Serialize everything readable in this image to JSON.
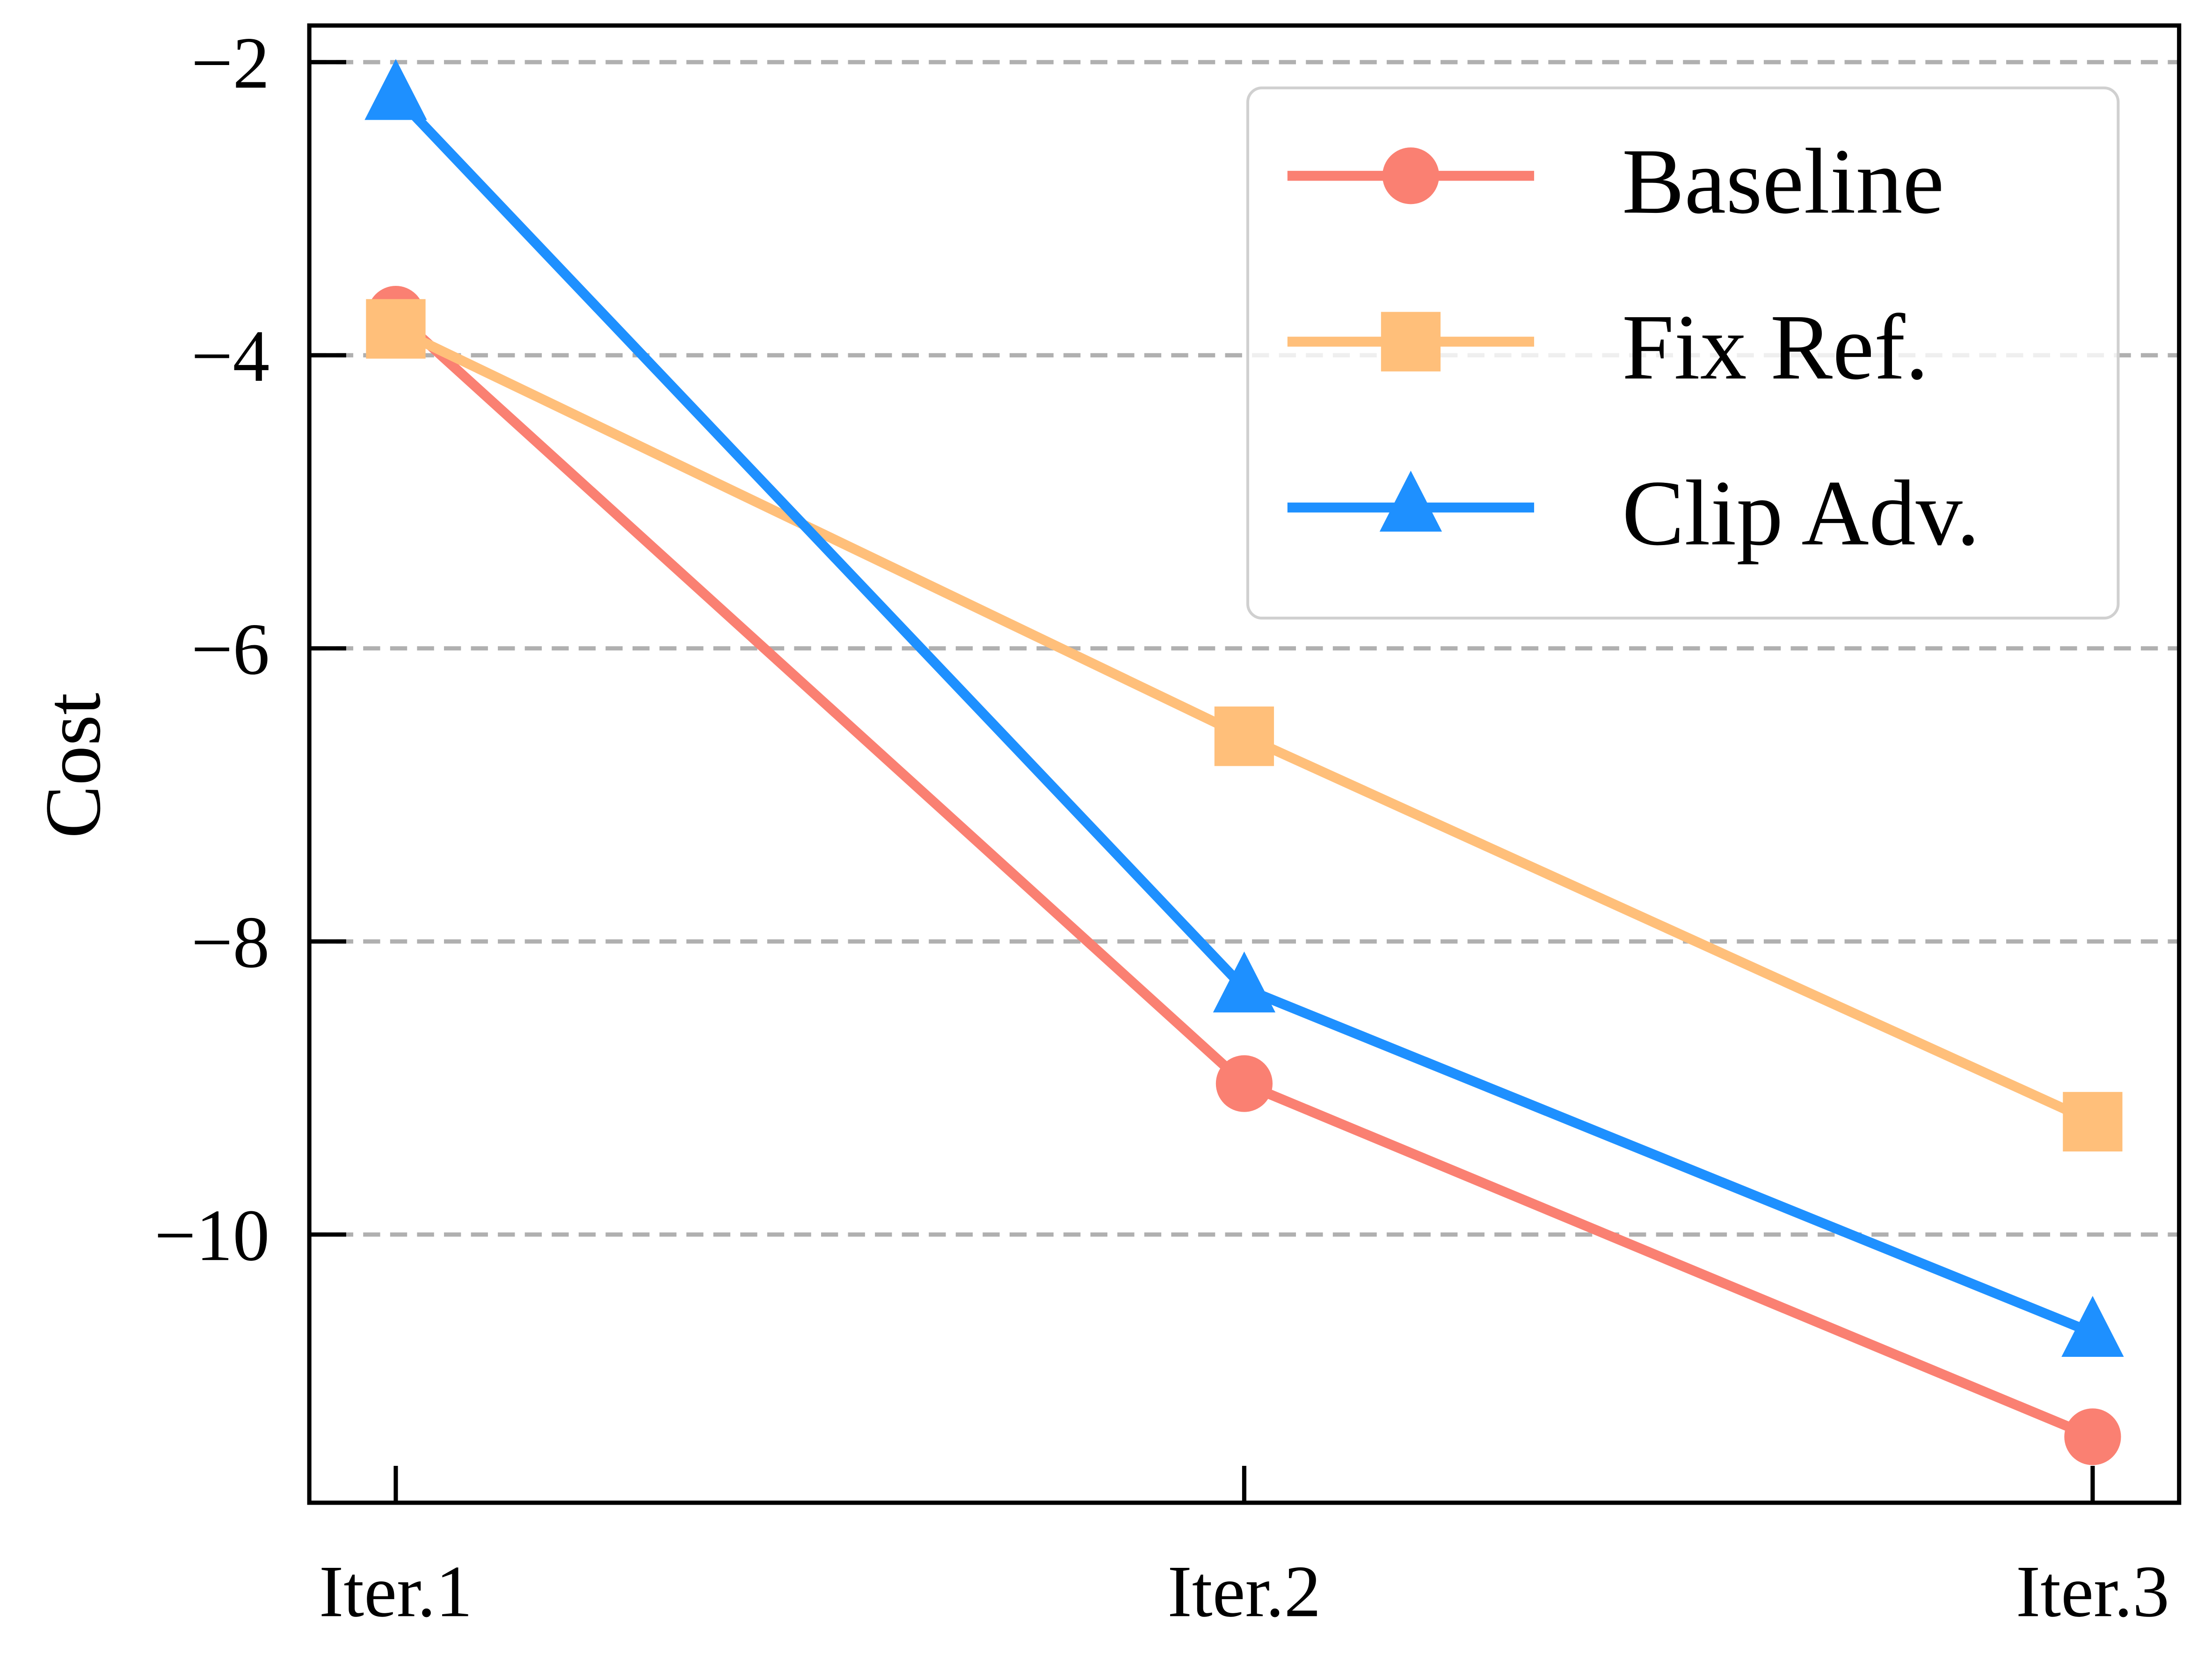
{
  "chart_data": {
    "type": "line",
    "title": "",
    "xlabel": "",
    "ylabel": "Cost",
    "categories": [
      "Iter.1",
      "Iter.2",
      "Iter.3"
    ],
    "ylim": [
      -11.83,
      -1.75
    ],
    "yticks": [
      -2,
      -4,
      -6,
      -8,
      -10
    ],
    "ytick_labels": [
      "−2",
      "−4",
      "−6",
      "−8",
      "−10"
    ],
    "grid": "horizontal dashed",
    "legend_position": "top-right",
    "series": [
      {
        "name": "Baseline",
        "values": [
          -3.72,
          -8.97,
          -11.38
        ],
        "color": "#FA8072",
        "marker": "circle"
      },
      {
        "name": "Fix Ref.",
        "values": [
          -3.82,
          -6.6,
          -9.23
        ],
        "color": "#FFBF7A",
        "marker": "square"
      },
      {
        "name": "Clip Adv.",
        "values": [
          -2.23,
          -8.32,
          -10.67
        ],
        "color": "#1E90FF",
        "marker": "triangle"
      }
    ]
  }
}
